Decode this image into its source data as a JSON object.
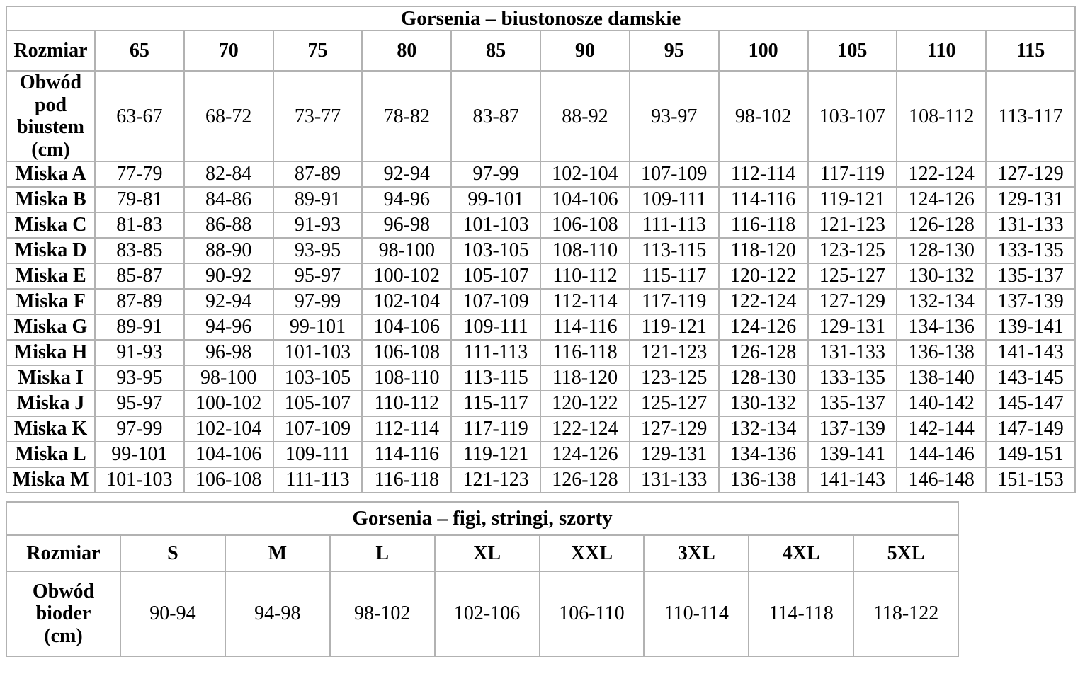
{
  "page": {
    "background_color": "#ffffff",
    "text_color": "#000000",
    "border_color": "#b2b2b2"
  },
  "tables": [
    {
      "id": "bras",
      "title": "Gorsenia – biustonosze damskie",
      "row_header_label": "Rozmiar",
      "columns": [
        "65",
        "70",
        "75",
        "80",
        "85",
        "90",
        "95",
        "100",
        "105",
        "110",
        "115"
      ],
      "rows": [
        {
          "label": "Obwód\npod\nbiustem\n(cm)",
          "values": [
            "63-67",
            "68-72",
            "73-77",
            "78-82",
            "83-87",
            "88-92",
            "93-97",
            "98-102",
            "103-107",
            "108-112",
            "113-117"
          ]
        },
        {
          "label": "Miska A",
          "values": [
            "77-79",
            "82-84",
            "87-89",
            "92-94",
            "97-99",
            "102-104",
            "107-109",
            "112-114",
            "117-119",
            "122-124",
            "127-129"
          ]
        },
        {
          "label": "Miska B",
          "values": [
            "79-81",
            "84-86",
            "89-91",
            "94-96",
            "99-101",
            "104-106",
            "109-111",
            "114-116",
            "119-121",
            "124-126",
            "129-131"
          ]
        },
        {
          "label": "Miska C",
          "values": [
            "81-83",
            "86-88",
            "91-93",
            "96-98",
            "101-103",
            "106-108",
            "111-113",
            "116-118",
            "121-123",
            "126-128",
            "131-133"
          ]
        },
        {
          "label": "Miska D",
          "values": [
            "83-85",
            "88-90",
            "93-95",
            "98-100",
            "103-105",
            "108-110",
            "113-115",
            "118-120",
            "123-125",
            "128-130",
            "133-135"
          ]
        },
        {
          "label": "Miska E",
          "values": [
            "85-87",
            "90-92",
            "95-97",
            "100-102",
            "105-107",
            "110-112",
            "115-117",
            "120-122",
            "125-127",
            "130-132",
            "135-137"
          ]
        },
        {
          "label": "Miska F",
          "values": [
            "87-89",
            "92-94",
            "97-99",
            "102-104",
            "107-109",
            "112-114",
            "117-119",
            "122-124",
            "127-129",
            "132-134",
            "137-139"
          ]
        },
        {
          "label": "Miska G",
          "values": [
            "89-91",
            "94-96",
            "99-101",
            "104-106",
            "109-111",
            "114-116",
            "119-121",
            "124-126",
            "129-131",
            "134-136",
            "139-141"
          ]
        },
        {
          "label": "Miska H",
          "values": [
            "91-93",
            "96-98",
            "101-103",
            "106-108",
            "111-113",
            "116-118",
            "121-123",
            "126-128",
            "131-133",
            "136-138",
            "141-143"
          ]
        },
        {
          "label": "Miska I",
          "values": [
            "93-95",
            "98-100",
            "103-105",
            "108-110",
            "113-115",
            "118-120",
            "123-125",
            "128-130",
            "133-135",
            "138-140",
            "143-145"
          ]
        },
        {
          "label": "Miska J",
          "values": [
            "95-97",
            "100-102",
            "105-107",
            "110-112",
            "115-117",
            "120-122",
            "125-127",
            "130-132",
            "135-137",
            "140-142",
            "145-147"
          ]
        },
        {
          "label": "Miska K",
          "values": [
            "97-99",
            "102-104",
            "107-109",
            "112-114",
            "117-119",
            "122-124",
            "127-129",
            "132-134",
            "137-139",
            "142-144",
            "147-149"
          ]
        },
        {
          "label": "Miska L",
          "values": [
            "99-101",
            "104-106",
            "109-111",
            "114-116",
            "119-121",
            "124-126",
            "129-131",
            "134-136",
            "139-141",
            "144-146",
            "149-151"
          ]
        },
        {
          "label": "Miska M",
          "values": [
            "101-103",
            "106-108",
            "111-113",
            "116-118",
            "121-123",
            "126-128",
            "131-133",
            "136-138",
            "141-143",
            "146-148",
            "151-153"
          ]
        }
      ]
    },
    {
      "id": "panties",
      "title": "Gorsenia – figi, stringi, szorty",
      "row_header_label": "Rozmiar",
      "columns": [
        "S",
        "M",
        "L",
        "XL",
        "XXL",
        "3XL",
        "4XL",
        "5XL"
      ],
      "rows": [
        {
          "label": "Obwód\nbioder\n(cm)",
          "values": [
            "90-94",
            "94-98",
            "98-102",
            "102-106",
            "106-110",
            "110-114",
            "114-118",
            "118-122"
          ]
        }
      ]
    }
  ]
}
